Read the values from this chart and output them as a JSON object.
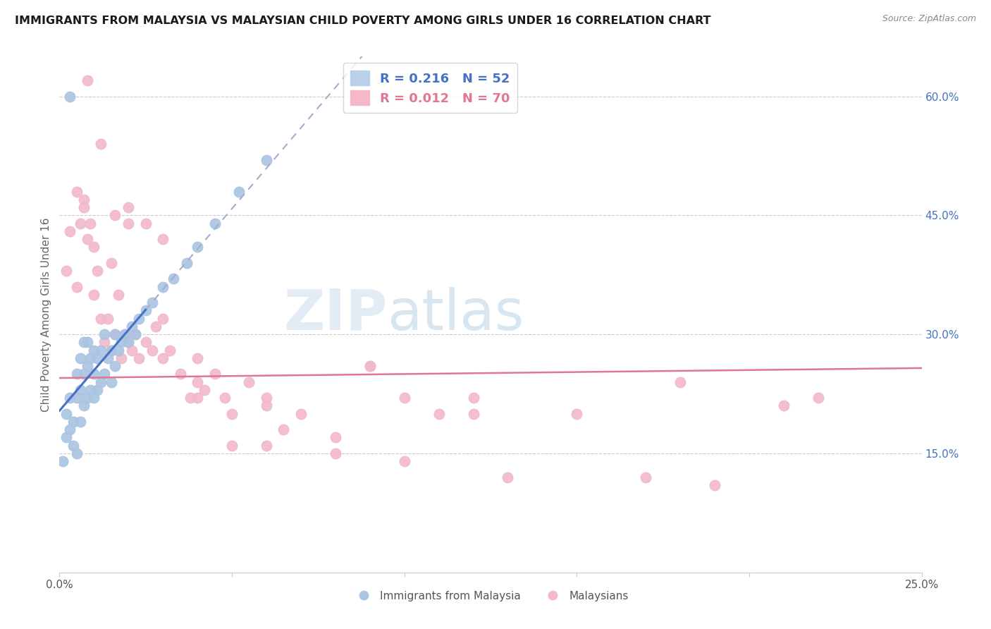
{
  "title": "IMMIGRANTS FROM MALAYSIA VS MALAYSIAN CHILD POVERTY AMONG GIRLS UNDER 16 CORRELATION CHART",
  "source": "Source: ZipAtlas.com",
  "ylabel": "Child Poverty Among Girls Under 16",
  "xlim": [
    0.0,
    0.25
  ],
  "ylim": [
    0.0,
    0.65
  ],
  "xtick_positions": [
    0.0,
    0.05,
    0.1,
    0.15,
    0.2,
    0.25
  ],
  "xticklabels": [
    "0.0%",
    "",
    "",
    "",
    "",
    "25.0%"
  ],
  "yticks_right": [
    0.15,
    0.3,
    0.45,
    0.6
  ],
  "ytick_right_labels": [
    "15.0%",
    "30.0%",
    "45.0%",
    "60.0%"
  ],
  "watermark_zip": "ZIP",
  "watermark_atlas": "atlas",
  "blue_R": "0.216",
  "blue_N": "52",
  "pink_R": "0.012",
  "pink_N": "70",
  "blue_dot_color": "#aac4e2",
  "pink_dot_color": "#f2b8cb",
  "blue_line_color": "#4472c4",
  "pink_line_color": "#e07890",
  "title_color": "#1a1a1a",
  "source_color": "#888888",
  "axis_label_color": "#666666",
  "tick_label_color_blue": "#4472c4",
  "grid_color": "#cccccc",
  "legend_border_color": "#cccccc",
  "blue_scatter_x": [
    0.001,
    0.002,
    0.002,
    0.003,
    0.003,
    0.004,
    0.004,
    0.005,
    0.005,
    0.005,
    0.006,
    0.006,
    0.006,
    0.007,
    0.007,
    0.007,
    0.008,
    0.008,
    0.008,
    0.009,
    0.009,
    0.01,
    0.01,
    0.01,
    0.011,
    0.011,
    0.012,
    0.012,
    0.013,
    0.013,
    0.014,
    0.015,
    0.015,
    0.016,
    0.016,
    0.017,
    0.018,
    0.019,
    0.02,
    0.021,
    0.022,
    0.023,
    0.025,
    0.027,
    0.03,
    0.033,
    0.037,
    0.04,
    0.045,
    0.052,
    0.003,
    0.06
  ],
  "blue_scatter_y": [
    0.14,
    0.17,
    0.2,
    0.18,
    0.22,
    0.16,
    0.19,
    0.15,
    0.22,
    0.25,
    0.19,
    0.23,
    0.27,
    0.21,
    0.25,
    0.29,
    0.22,
    0.26,
    0.29,
    0.23,
    0.27,
    0.22,
    0.25,
    0.28,
    0.23,
    0.27,
    0.24,
    0.28,
    0.25,
    0.3,
    0.27,
    0.24,
    0.28,
    0.26,
    0.3,
    0.28,
    0.29,
    0.3,
    0.29,
    0.31,
    0.3,
    0.32,
    0.33,
    0.34,
    0.36,
    0.37,
    0.39,
    0.41,
    0.44,
    0.48,
    0.6,
    0.52
  ],
  "pink_scatter_x": [
    0.002,
    0.003,
    0.005,
    0.006,
    0.007,
    0.008,
    0.009,
    0.01,
    0.011,
    0.012,
    0.013,
    0.014,
    0.015,
    0.016,
    0.017,
    0.018,
    0.019,
    0.02,
    0.021,
    0.022,
    0.023,
    0.025,
    0.027,
    0.028,
    0.03,
    0.032,
    0.035,
    0.038,
    0.04,
    0.042,
    0.045,
    0.048,
    0.05,
    0.055,
    0.06,
    0.065,
    0.07,
    0.08,
    0.09,
    0.1,
    0.11,
    0.12,
    0.13,
    0.15,
    0.17,
    0.19,
    0.21,
    0.22,
    0.016,
    0.02,
    0.025,
    0.03,
    0.04,
    0.05,
    0.06,
    0.08,
    0.1,
    0.008,
    0.012,
    0.005,
    0.007,
    0.01,
    0.015,
    0.02,
    0.03,
    0.04,
    0.06,
    0.09,
    0.12,
    0.18
  ],
  "pink_scatter_y": [
    0.38,
    0.43,
    0.36,
    0.44,
    0.46,
    0.42,
    0.44,
    0.35,
    0.38,
    0.32,
    0.29,
    0.32,
    0.28,
    0.3,
    0.35,
    0.27,
    0.3,
    0.29,
    0.28,
    0.3,
    0.27,
    0.29,
    0.28,
    0.31,
    0.27,
    0.28,
    0.25,
    0.22,
    0.27,
    0.23,
    0.25,
    0.22,
    0.2,
    0.24,
    0.21,
    0.18,
    0.2,
    0.17,
    0.26,
    0.22,
    0.2,
    0.22,
    0.12,
    0.2,
    0.12,
    0.11,
    0.21,
    0.22,
    0.45,
    0.46,
    0.44,
    0.42,
    0.24,
    0.16,
    0.16,
    0.15,
    0.14,
    0.62,
    0.54,
    0.48,
    0.47,
    0.41,
    0.39,
    0.44,
    0.32,
    0.22,
    0.22,
    0.26,
    0.2,
    0.24
  ]
}
